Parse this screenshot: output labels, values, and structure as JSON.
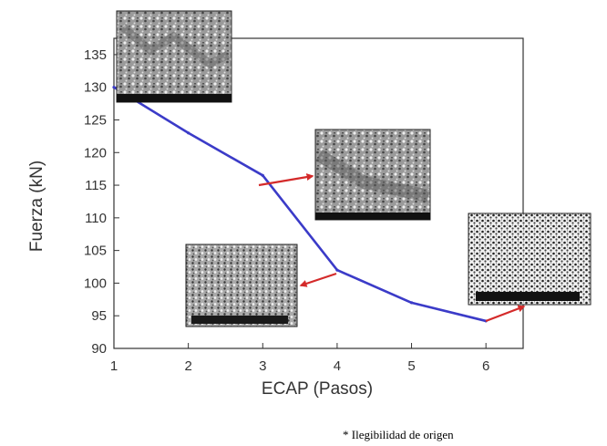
{
  "chart_data": {
    "type": "line",
    "xlabel": "ECAP (Pasos)",
    "ylabel": "Fuerza (kN)",
    "xlim": [
      1,
      6.5
    ],
    "ylim": [
      90,
      137.5
    ],
    "x_ticks": [
      1,
      2,
      3,
      4,
      5,
      6
    ],
    "y_ticks": [
      90,
      95,
      100,
      105,
      110,
      115,
      120,
      125,
      130,
      135
    ],
    "grid": false,
    "series": [
      {
        "x": [
          1,
          2,
          3,
          4,
          5,
          6
        ],
        "y": [
          130,
          123,
          116.5,
          102,
          97,
          94.2
        ],
        "color": "#3b3bc8"
      }
    ],
    "annotations": [
      {
        "kind": "micrograph-inset",
        "attached_point": 1
      },
      {
        "kind": "micrograph-inset",
        "attached_point": 3
      },
      {
        "kind": "micrograph-inset",
        "attached_point": 4
      },
      {
        "kind": "micrograph-inset",
        "attached_point": 6
      }
    ],
    "arrow_color": "#d42a2a"
  },
  "footnote": "* Ilegibilidad de origen"
}
